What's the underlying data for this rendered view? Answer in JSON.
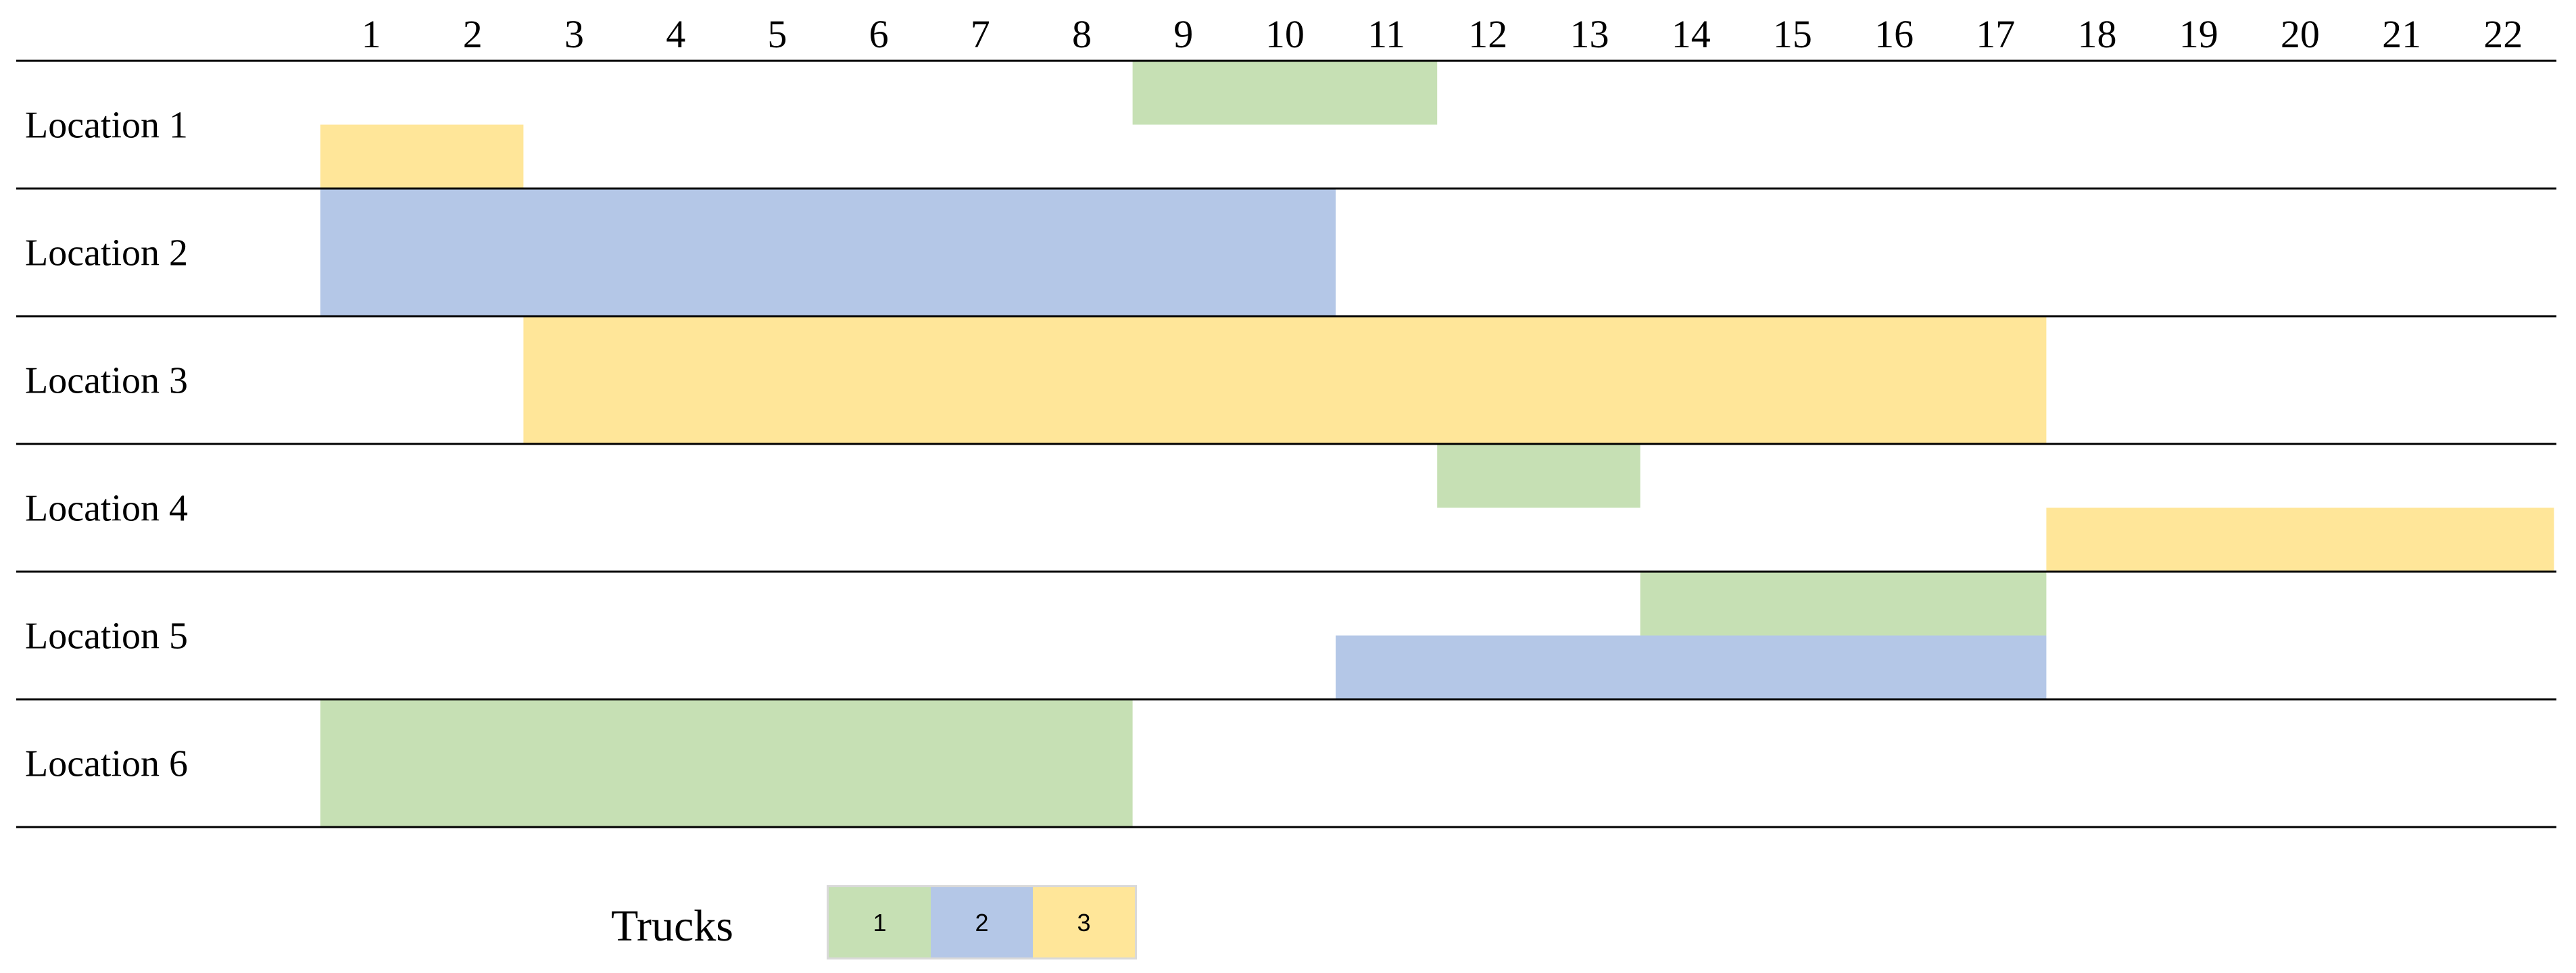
{
  "chart_data": {
    "type": "gantt",
    "x": [
      1,
      2,
      3,
      4,
      5,
      6,
      7,
      8,
      9,
      10,
      11,
      12,
      13,
      14,
      15,
      16,
      17,
      18,
      19,
      20,
      21,
      22
    ],
    "rows": [
      "Location 1",
      "Location 2",
      "Location 3",
      "Location 4",
      "Location 5",
      "Location 6"
    ],
    "legend": {
      "title": "Trucks",
      "entries": [
        {
          "label": "1",
          "color": "#c6e0b4"
        },
        {
          "label": "2",
          "color": "#b4c7e7"
        },
        {
          "label": "3",
          "color": "#ffe699"
        }
      ]
    },
    "tasks": [
      {
        "row": 0,
        "truck": 1,
        "start": 9,
        "end": 11,
        "lane": "upper"
      },
      {
        "row": 0,
        "truck": 3,
        "start": 1,
        "end": 2,
        "lane": "lower"
      },
      {
        "row": 1,
        "truck": 2,
        "start": 1,
        "end": 10,
        "lane": "full"
      },
      {
        "row": 2,
        "truck": 3,
        "start": 3,
        "end": 17,
        "lane": "full"
      },
      {
        "row": 3,
        "truck": 1,
        "start": 12,
        "end": 13,
        "lane": "upper"
      },
      {
        "row": 3,
        "truck": 3,
        "start": 18,
        "end": 22,
        "lane": "lower"
      },
      {
        "row": 4,
        "truck": 1,
        "start": 14,
        "end": 17,
        "lane": "upper"
      },
      {
        "row": 4,
        "truck": 2,
        "start": 11,
        "end": 17,
        "lane": "lower"
      },
      {
        "row": 5,
        "truck": 1,
        "start": 1,
        "end": 8,
        "lane": "full"
      }
    ]
  }
}
